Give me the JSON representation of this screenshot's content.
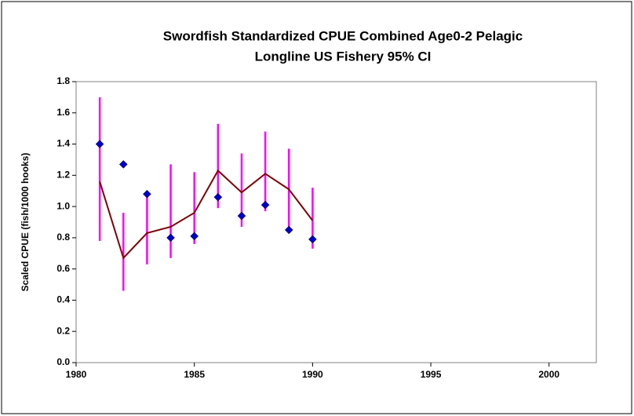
{
  "chart_data": {
    "type": "scatter",
    "title": [
      "Swordfish Standardized CPUE Combined Age0-2 Pelagic",
      "Longline US Fishery 95% CI"
    ],
    "y_label": "Scaled CPUE (fish/1000 hooks)",
    "x": [
      1981,
      1982,
      1983,
      1984,
      1985,
      1986,
      1987,
      1988,
      1989,
      1990
    ],
    "points": {
      "color": "#0000cc",
      "values": [
        1.4,
        1.27,
        1.08,
        0.8,
        0.81,
        1.06,
        0.94,
        1.01,
        0.85,
        0.79
      ]
    },
    "line": {
      "color": "#800000",
      "values": [
        1.16,
        0.67,
        0.83,
        0.87,
        0.96,
        1.23,
        1.09,
        1.21,
        1.11,
        0.91
      ]
    },
    "ci": {
      "color": "#ff00ff",
      "lower": [
        0.78,
        0.46,
        0.63,
        0.67,
        0.76,
        0.99,
        0.87,
        0.97,
        0.86,
        0.73
      ],
      "upper": [
        1.7,
        0.96,
        1.06,
        1.27,
        1.22,
        1.53,
        1.34,
        1.48,
        1.37,
        1.12
      ]
    },
    "xlim": [
      1980,
      2002
    ],
    "xticks": [
      1980,
      1985,
      1990,
      1995,
      2000
    ],
    "ylim": [
      0,
      1.8
    ],
    "yticks": [
      {
        "value": 0,
        "label": "0.0"
      },
      {
        "value": 0.2,
        "label": "0.2"
      },
      {
        "value": 0.4,
        "label": "0.4"
      },
      {
        "value": 0.6,
        "label": "0.6"
      },
      {
        "value": 0.8,
        "label": "0.8"
      },
      {
        "value": 1.0,
        "label": "1.0"
      },
      {
        "value": 1.2,
        "label": "1.2"
      },
      {
        "value": 1.4,
        "label": "1.4"
      },
      {
        "value": 1.6,
        "label": "1.6"
      },
      {
        "value": 1.8,
        "label": "1.8"
      }
    ]
  }
}
